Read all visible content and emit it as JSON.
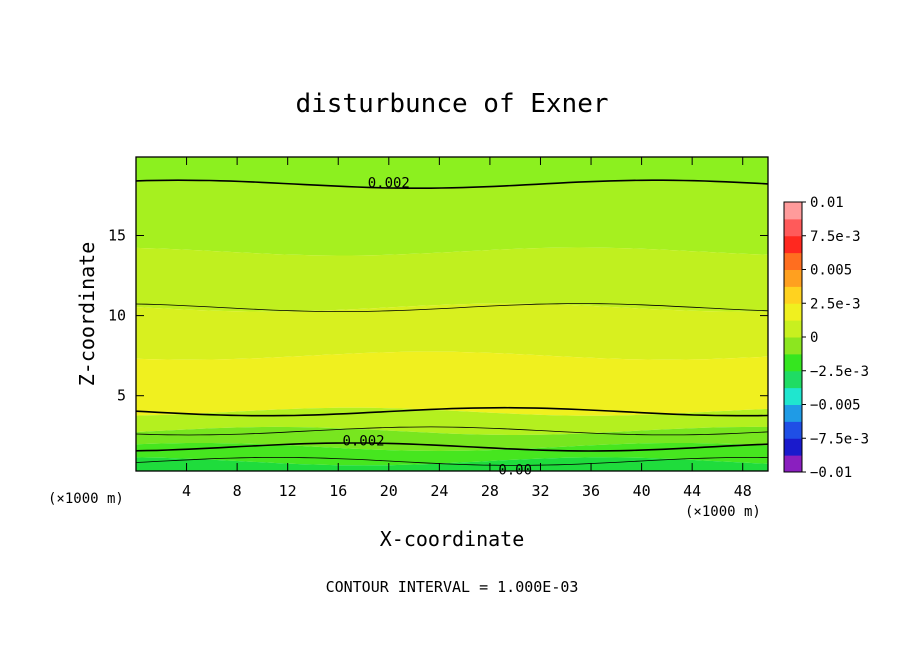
{
  "chart_data": {
    "type": "heatmap",
    "title": "disturbunce of Exner",
    "xlabel": "X-coordinate",
    "ylabel": "Z-coordinate",
    "x_unit": "(×1000 m)",
    "x_unit_right": "(×1000 m)",
    "xlim": [
      0,
      50
    ],
    "ylim": [
      0.3,
      19.9
    ],
    "xticks": [
      4,
      8,
      12,
      16,
      20,
      24,
      28,
      32,
      36,
      40,
      44,
      48
    ],
    "yticks": [
      5,
      10,
      15
    ],
    "footnote": "CONTOUR INTERVAL = 1.000E-03",
    "colorbar": {
      "levels": [
        -0.01,
        -0.0075,
        -0.005,
        -0.0025,
        0,
        0.0025,
        0.005,
        0.0075,
        0.01
      ],
      "tick_labels": [
        "0.01",
        "7.5e-3",
        "0.005",
        "2.5e-3",
        "0",
        "−2.5e-3",
        "−0.005",
        "−7.5e-3",
        "−0.01"
      ],
      "colors": [
        "#8a1fbf",
        "#1a1acc",
        "#1f4fe6",
        "#1f9be6",
        "#1fe6cf",
        "#1fdc64",
        "#35e61f",
        "#8ce61f",
        "#c8f01f",
        "#f0f01f",
        "#ffd21f",
        "#ffa01f",
        "#ff6e1f",
        "#ff281f",
        "#ff5a5a",
        "#ff9b9b"
      ]
    },
    "contour_labels": [
      {
        "text": "0.002",
        "x": 20,
        "z": 18.3
      },
      {
        "text": "0.002",
        "x": 18,
        "z": 2.2
      },
      {
        "text": "0.00",
        "x": 30,
        "z": 0.4
      }
    ],
    "field_bands": [
      {
        "z_from": 18.2,
        "z_to": 19.9,
        "value": 0.0015,
        "color": "#8cf01f"
      },
      {
        "z_from": 14.0,
        "z_to": 18.2,
        "value": 0.0025,
        "color": "#a6f01f"
      },
      {
        "z_from": 10.5,
        "z_to": 14.0,
        "value": 0.003,
        "color": "#c0f01f"
      },
      {
        "z_from": 7.5,
        "z_to": 10.5,
        "value": 0.0035,
        "color": "#d8f01f"
      },
      {
        "z_from": 4.0,
        "z_to": 7.5,
        "value": 0.004,
        "color": "#f0f01f"
      },
      {
        "z_from": 2.8,
        "z_to": 4.0,
        "value": 0.0025,
        "color": "#b4f01f"
      },
      {
        "z_from": 1.8,
        "z_to": 2.8,
        "value": 0.0015,
        "color": "#78e61f"
      },
      {
        "z_from": 0.9,
        "z_to": 1.8,
        "value": 0.0005,
        "color": "#46e61f"
      },
      {
        "z_from": 0.3,
        "z_to": 0.9,
        "value": 0.0,
        "color": "#1fdc3c"
      }
    ]
  }
}
